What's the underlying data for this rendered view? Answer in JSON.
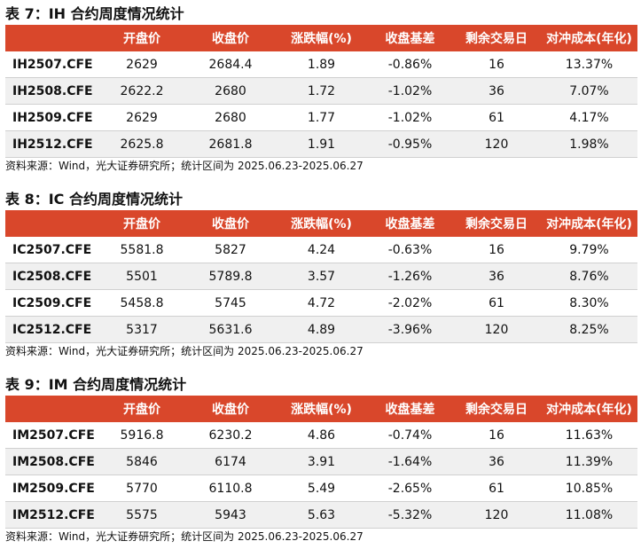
{
  "tables": [
    {
      "title": "表 7：IH 合约周度情况统计",
      "header": [
        "开盘价",
        "收盘价",
        "涨跌幅(%)",
        "收盘基差",
        "剩余交易日",
        "对冲成本(年化)"
      ],
      "rows": [
        [
          "IH2507.CFE",
          "2629",
          "2684.4",
          "1.89",
          "-0.86%",
          "16",
          "13.37%"
        ],
        [
          "IH2508.CFE",
          "2622.2",
          "2680",
          "1.72",
          "-1.02%",
          "36",
          "7.07%"
        ],
        [
          "IH2509.CFE",
          "2629",
          "2680",
          "1.77",
          "-1.02%",
          "61",
          "4.17%"
        ],
        [
          "IH2512.CFE",
          "2625.8",
          "2681.8",
          "1.91",
          "-0.95%",
          "120",
          "1.98%"
        ]
      ],
      "source": "资料来源：Wind，光大证券研究所；统计区间为 2025.06.23-2025.06.27"
    },
    {
      "title": "表 8：IC 合约周度情况统计",
      "header": [
        "开盘价",
        "收盘价",
        "涨跌幅(%)",
        "收盘基差",
        "剩余交易日",
        "对冲成本(年化)"
      ],
      "rows": [
        [
          "IC2507.CFE",
          "5581.8",
          "5827",
          "4.24",
          "-0.63%",
          "16",
          "9.79%"
        ],
        [
          "IC2508.CFE",
          "5501",
          "5789.8",
          "3.57",
          "-1.26%",
          "36",
          "8.76%"
        ],
        [
          "IC2509.CFE",
          "5458.8",
          "5745",
          "4.72",
          "-2.02%",
          "61",
          "8.30%"
        ],
        [
          "IC2512.CFE",
          "5317",
          "5631.6",
          "4.89",
          "-3.96%",
          "120",
          "8.25%"
        ]
      ],
      "source": "资料来源：Wind，光大证券研究所；统计区间为 2025.06.23-2025.06.27"
    },
    {
      "title": "表 9：IM 合约周度情况统计",
      "header": [
        "开盘价",
        "收盘价",
        "涨跌幅(%)",
        "收盘基差",
        "剩余交易日",
        "对冲成本(年化)"
      ],
      "rows": [
        [
          "IM2507.CFE",
          "5916.8",
          "6230.2",
          "4.86",
          "-0.74%",
          "16",
          "11.63%"
        ],
        [
          "IM2508.CFE",
          "5846",
          "6174",
          "3.91",
          "-1.64%",
          "36",
          "11.39%"
        ],
        [
          "IM2509.CFE",
          "5770",
          "6110.8",
          "5.49",
          "-2.65%",
          "61",
          "10.85%"
        ],
        [
          "IM2512.CFE",
          "5575",
          "5943",
          "5.63",
          "-5.32%",
          "120",
          "11.08%"
        ]
      ],
      "source": "资料来源：Wind，光大证券研究所；统计区间为 2025.06.23-2025.06.27"
    }
  ]
}
